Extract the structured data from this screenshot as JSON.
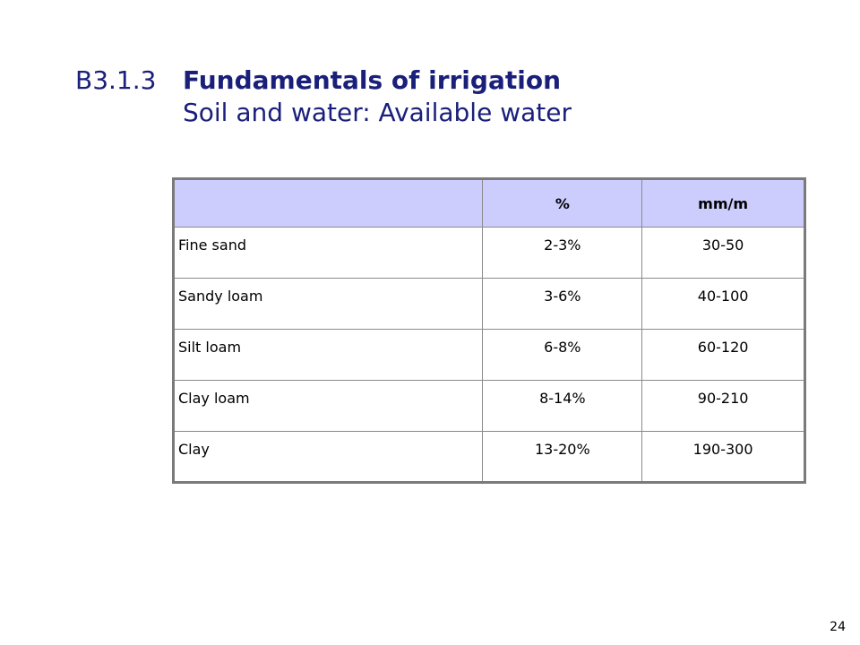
{
  "title": {
    "section_number": "B3.1.3",
    "main": "Fundamentals of irrigation",
    "subtitle": "Soil and water: Available water"
  },
  "table": {
    "headers": [
      "",
      "%",
      "mm/m"
    ],
    "rows": [
      {
        "soil": "Fine sand",
        "percent": "2-3%",
        "mm_per_m": "30-50"
      },
      {
        "soil": "Sandy loam",
        "percent": "3-6%",
        "mm_per_m": "40-100"
      },
      {
        "soil": "Silt loam",
        "percent": "6-8%",
        "mm_per_m": "60-120"
      },
      {
        "soil": "Clay loam",
        "percent": "8-14%",
        "mm_per_m": "90-210"
      },
      {
        "soil": "Clay",
        "percent": "13-20%",
        "mm_per_m": "190-300"
      }
    ]
  },
  "page_number": "24",
  "colors": {
    "title": "#1a1f7a",
    "header_fill": "#cccdfd",
    "border": "#7a7a7a"
  }
}
